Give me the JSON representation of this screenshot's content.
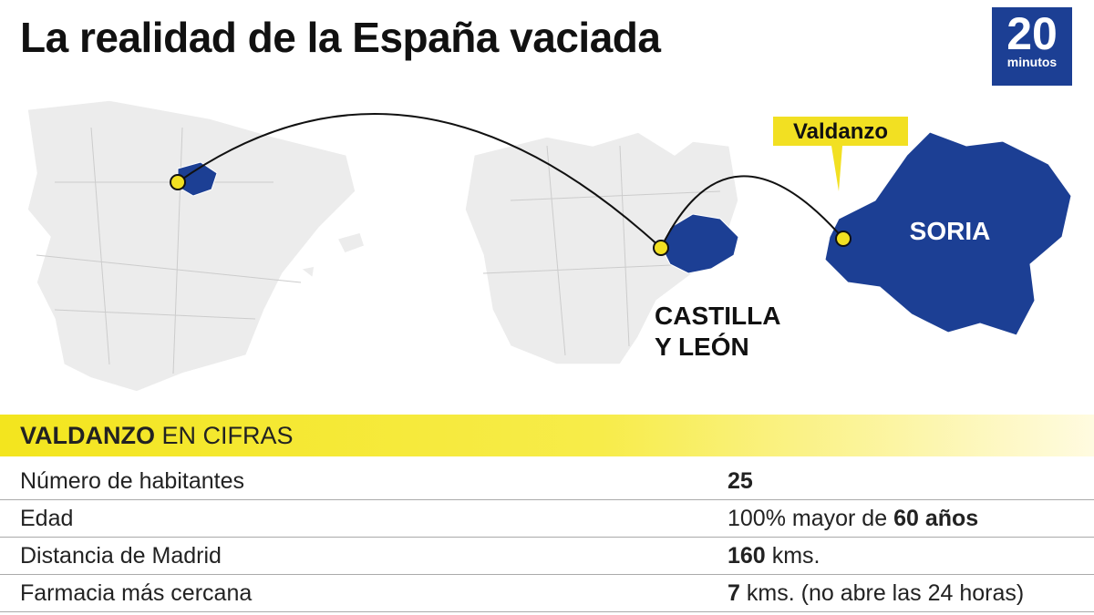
{
  "header": {
    "title": "La realidad de la España vaciada",
    "logo": {
      "number": "20",
      "word": "minutos"
    }
  },
  "map": {
    "labels": {
      "village": "Valdanzo",
      "province": "SORIA",
      "region": [
        "CASTILLA",
        "Y LEÓN"
      ]
    }
  },
  "table": {
    "heading": [
      {
        "text": "VALDANZO",
        "bold": true
      },
      {
        "text": "EN CIFRAS",
        "bold": false
      }
    ],
    "rows": [
      {
        "label": "Número de habitantes",
        "value": [
          {
            "text": "25",
            "bold": true
          }
        ]
      },
      {
        "label": "Edad",
        "value": [
          {
            "text": "100% mayor de",
            "bold": false
          },
          {
            "text": "60 años",
            "bold": true
          }
        ]
      },
      {
        "label": "Distancia de Madrid",
        "value": [
          {
            "text": "160",
            "bold": true
          },
          {
            "text": "kms.",
            "bold": false
          }
        ]
      },
      {
        "label": "Farmacia más cercana",
        "value": [
          {
            "text": "7",
            "bold": true
          },
          {
            "text": "kms. (no abre las 24 horas)",
            "bold": false
          }
        ]
      }
    ]
  }
}
